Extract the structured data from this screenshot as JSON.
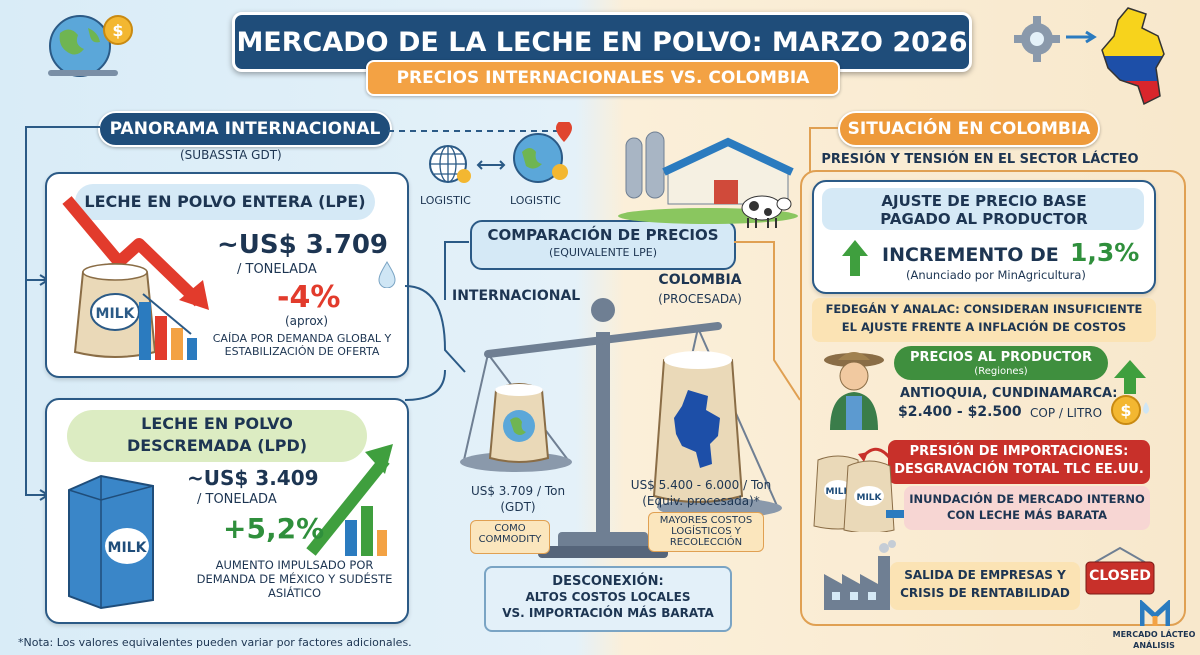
{
  "header": {
    "title": "MERCADO DE LA LECHE EN POLVO: MARZO 2026",
    "subtitle": "PRECIOS INTERNACIONALES VS. COLOMBIA"
  },
  "international": {
    "section_title": "PANORAMA INTERNACIONAL",
    "section_sub": "(SUBASSTA GDT)",
    "logistic_1": "LOGISTIC",
    "logistic_2": "LOGISTIC",
    "lpe": {
      "title": "LECHE EN POLVO ENTERA (LPE)",
      "price": "~US$ 3.709",
      "unit": "/ TONELADA",
      "change": "-4%",
      "change_note": "(aprox)",
      "desc": "CAÍDA POR DEMANDA GLOBAL Y ESTABILIZACIÓN DE OFERTA",
      "bag_label": "MILK"
    },
    "lpd": {
      "title_1": "LECHE EN POLVO",
      "title_2": "DESCREMADA (LPD)",
      "price": "~US$ 3.409",
      "unit": "/ TONELADA",
      "change": "+5,2%",
      "desc": "AUMENTO IMPULSADO POR DEMANDA DE MÉXICO Y SUDÉSTE ASIÁTICO",
      "box_label": "MILK"
    }
  },
  "comparison": {
    "title": "COMPARACIÓN DE PRECIOS",
    "subtitle": "(EQUIVALENTE LPE)",
    "left_label": "INTERNACIONAL",
    "right_label_1": "COLOMBIA",
    "right_label_2": "(PROCESADA)",
    "left_price_1": "US$ 3.709 / Ton",
    "left_price_2": "(GDT)",
    "right_price_1": "US$ 5.400 - 6.000 / Ton",
    "right_price_2": "(Equiv. procesada)*",
    "left_tag": "COMO COMMODITY",
    "right_tag": "MAYORES COSTOS LOGÍSTICOS Y RECOLECCIÓN",
    "disconnect_title": "DESCONEXIÓN:",
    "disconnect_1": "ALTOS COSTOS LOCALES",
    "disconnect_2": "VS. IMPORTACIÓN MÁS BARATA"
  },
  "colombia": {
    "section_title": "SITUACIÓN EN COLOMBIA",
    "section_sub": "PRESIÓN Y TENSIÓN EN EL SECTOR LÁCTEO",
    "adjust_title_1": "AJUSTE DE PRECIO BASE",
    "adjust_title_2": "PAGADO AL PRODUCTOR",
    "increment_label": "INCREMENTO DE",
    "increment_value": "1,3%",
    "increment_note": "(Anunciado por MinAgricultura)",
    "fedegan_1": "FEDEGÁN Y ANALAC: CONSIDERAN INSUFICIENTE",
    "fedegan_2": "EL AJUSTE FRENTE A INFLACIÓN DE COSTOS",
    "producer_title": "PRECIOS AL PRODUCTOR",
    "producer_sub": "(Regiones)",
    "producer_regions": "ANTIOQUIA, CUNDINAMARCA:",
    "producer_price": "$2.400 - $2.500",
    "producer_unit": "COP / LITRO",
    "import_title_1": "PRESIÓN DE IMPORTACIONES:",
    "import_title_2": "DESGRAVACIÓN TOTAL TLC EE.UU.",
    "flood_1": "INUNDACIÓN DE MERCADO INTERNO",
    "flood_2": "CON LECHE MÁS BARATA",
    "exit_1": "SALIDA DE EMPRESAS Y",
    "exit_2": "CRISIS DE RENTABILIDAD",
    "closed_sign": "CLOSED",
    "bag_label": "MILK"
  },
  "footer": {
    "note": "*Nota: Los valores equivalentes pueden variar por factores adicionales.",
    "brand_1": "MERCADO LÁCTEO",
    "brand_2": "ANÁLISIS"
  },
  "colors": {
    "navy": "#1f4d7a",
    "orange": "#ee9a3a",
    "red": "#e23b2c",
    "green": "#2f8f3c"
  },
  "icons": [
    "globe-icon",
    "dollar-coin-icon",
    "gear-icon",
    "colombia-map-icon",
    "down-arrow-icon",
    "up-arrow-icon",
    "milk-bag-icon",
    "milk-box-icon",
    "scale-icon",
    "farm-icon",
    "cow-icon",
    "farmer-icon",
    "factory-icon",
    "closed-sign-icon",
    "water-drop-icon"
  ]
}
